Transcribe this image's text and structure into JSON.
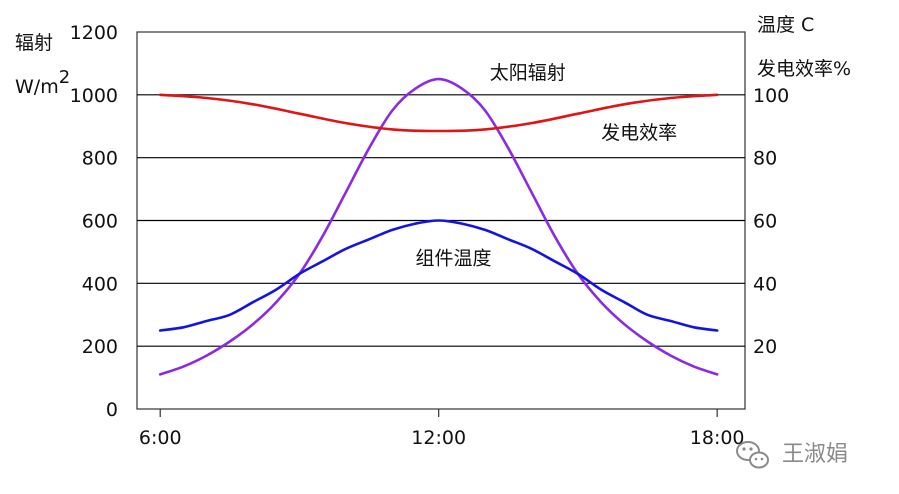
{
  "chart_data": {
    "type": "line",
    "left_axis": {
      "label_line1": "辐射",
      "label_line2": "W/m2",
      "ticks": [
        0,
        200,
        400,
        600,
        800,
        1000,
        1200
      ],
      "ylim": [
        0,
        1200
      ]
    },
    "right_axis": {
      "label_line1": "温度 C",
      "label_line2": "发电效率%",
      "ticks": [
        20,
        40,
        60,
        80,
        100
      ],
      "ylim": [
        0,
        120
      ]
    },
    "x_axis": {
      "ticks": [
        "6:00",
        "12:00",
        "18:00"
      ],
      "xlim": [
        5.5,
        18.6
      ],
      "tick_values": [
        6,
        12,
        18
      ]
    },
    "grid": true,
    "series": [
      {
        "name": "太阳辐射",
        "axis": "left",
        "color": "#8a2be2",
        "label_at": [
          13.1,
          1050
        ],
        "x": [
          6,
          6.5,
          7,
          7.5,
          8,
          8.5,
          9,
          9.5,
          10,
          10.5,
          11,
          11.5,
          12,
          12.5,
          13,
          13.5,
          14,
          14.5,
          15,
          15.5,
          16,
          16.5,
          17,
          17.5,
          18
        ],
        "values": [
          110,
          135,
          170,
          215,
          270,
          340,
          430,
          550,
          690,
          830,
          950,
          1020,
          1050,
          1020,
          950,
          830,
          690,
          550,
          430,
          340,
          270,
          215,
          170,
          135,
          110
        ]
      },
      {
        "name": "发电效率",
        "axis": "right",
        "color": "#e01414",
        "label_at": [
          15.5,
          86
        ],
        "x": [
          6,
          7,
          8,
          9,
          10,
          11,
          12,
          13,
          14,
          15,
          16,
          17,
          18
        ],
        "values": [
          100,
          99,
          97,
          94,
          91,
          89,
          88.5,
          89,
          91,
          94,
          97,
          99,
          100
        ]
      },
      {
        "name": "组件温度",
        "axis": "right",
        "color": "#1414e0",
        "label_at": [
          11.5,
          46
        ],
        "x": [
          6,
          6.5,
          7,
          7.5,
          8,
          8.5,
          9,
          9.5,
          10,
          10.5,
          11,
          11.5,
          12,
          12.5,
          13,
          13.5,
          14,
          14.5,
          15,
          15.5,
          16,
          16.5,
          17,
          17.5,
          18
        ],
        "values": [
          25,
          26,
          28,
          30,
          34,
          38,
          43,
          47,
          51,
          54,
          57,
          59,
          60,
          59,
          57,
          54,
          51,
          47,
          43,
          38,
          34,
          30,
          28,
          26,
          25
        ]
      }
    ]
  },
  "watermark": {
    "text": "王淑娟",
    "icon": "wechat-icon",
    "color": "#8a8a8a"
  }
}
